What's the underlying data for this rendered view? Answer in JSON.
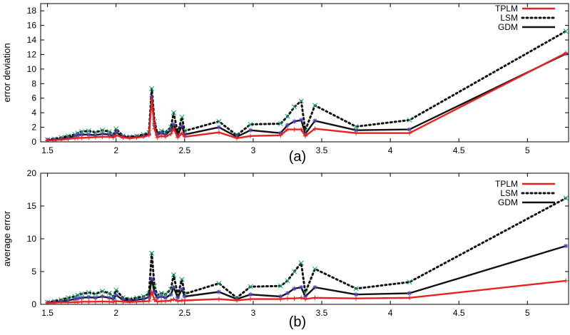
{
  "chart_data": [
    {
      "panel": "(a)",
      "type": "line",
      "caption": "(a)",
      "ylabel": "error deviation",
      "xlabel": "",
      "xlim": [
        1.45,
        5.3
      ],
      "ylim": [
        0,
        19
      ],
      "xticks": [
        1.5,
        2,
        2.5,
        3,
        3.5,
        4,
        4.5,
        5
      ],
      "xtick_labels": [
        "1.5",
        "2",
        "2.5",
        "3",
        "3.5",
        "4",
        "4.5",
        "5"
      ],
      "yticks": [
        0,
        2,
        4,
        6,
        8,
        10,
        12,
        14,
        16,
        18
      ],
      "ytick_labels": [
        "0",
        "2",
        "4",
        "6",
        "8",
        "10",
        "12",
        "14",
        "16",
        "18"
      ],
      "legend_position": "top-right",
      "grid": false,
      "series": [
        {
          "name": "TPLM",
          "color": "#e8221e",
          "style": "solid",
          "marker": "plus",
          "x": [
            1.5,
            1.55,
            1.6,
            1.65,
            1.7,
            1.72,
            1.75,
            1.8,
            1.85,
            1.9,
            1.95,
            1.98,
            2.0,
            2.05,
            2.1,
            2.15,
            2.2,
            2.24,
            2.26,
            2.28,
            2.3,
            2.33,
            2.36,
            2.4,
            2.42,
            2.45,
            2.48,
            2.5,
            2.75,
            2.88,
            2.98,
            3.2,
            3.25,
            3.3,
            3.35,
            3.38,
            3.45,
            3.75,
            4.14,
            5.28
          ],
          "y": [
            0.2,
            0.25,
            0.3,
            0.4,
            0.5,
            0.55,
            0.55,
            0.6,
            0.65,
            0.7,
            0.7,
            0.6,
            0.9,
            0.6,
            0.5,
            0.6,
            0.7,
            0.9,
            5.8,
            1.8,
            0.6,
            0.8,
            0.7,
            1.1,
            1.8,
            0.6,
            1.2,
            0.7,
            1.3,
            0.5,
            0.8,
            0.9,
            1.7,
            1.7,
            1.7,
            0.8,
            1.8,
            1.2,
            1.2,
            12.2
          ]
        },
        {
          "name": "LSM",
          "color": "#111111",
          "style": "dotted",
          "marker": "x-green",
          "x": [
            1.5,
            1.55,
            1.6,
            1.65,
            1.7,
            1.72,
            1.75,
            1.8,
            1.85,
            1.9,
            1.95,
            1.98,
            2.0,
            2.05,
            2.1,
            2.15,
            2.2,
            2.24,
            2.26,
            2.28,
            2.3,
            2.33,
            2.36,
            2.4,
            2.42,
            2.45,
            2.48,
            2.5,
            2.75,
            2.88,
            2.98,
            3.2,
            3.25,
            3.3,
            3.35,
            3.38,
            3.45,
            3.75,
            4.14,
            5.28
          ],
          "y": [
            0.3,
            0.4,
            0.6,
            0.8,
            1.0,
            1.2,
            1.4,
            1.5,
            1.3,
            1.6,
            1.4,
            1.0,
            1.8,
            0.8,
            0.7,
            0.8,
            1.0,
            1.3,
            7.3,
            2.8,
            1.2,
            1.5,
            1.3,
            2.0,
            4.0,
            1.2,
            3.4,
            1.5,
            2.8,
            0.9,
            2.4,
            2.5,
            3.5,
            4.8,
            5.6,
            1.6,
            5.0,
            2.1,
            3.0,
            15.2
          ]
        },
        {
          "name": "GDM",
          "color": "#111111",
          "style": "solid",
          "marker": "star-blue",
          "x": [
            1.5,
            1.55,
            1.6,
            1.65,
            1.7,
            1.72,
            1.75,
            1.8,
            1.85,
            1.9,
            1.95,
            1.98,
            2.0,
            2.05,
            2.1,
            2.15,
            2.2,
            2.24,
            2.26,
            2.28,
            2.3,
            2.33,
            2.36,
            2.4,
            2.42,
            2.45,
            2.48,
            2.5,
            2.75,
            2.88,
            2.98,
            3.2,
            3.25,
            3.3,
            3.35,
            3.38,
            3.45,
            3.75,
            4.14,
            5.28
          ],
          "y": [
            0.25,
            0.3,
            0.4,
            0.6,
            0.8,
            0.9,
            1.0,
            1.0,
            0.9,
            1.1,
            1.0,
            0.8,
            1.3,
            0.7,
            0.6,
            0.7,
            0.8,
            1.1,
            6.2,
            2.3,
            1.0,
            1.2,
            1.0,
            1.6,
            2.4,
            0.9,
            2.2,
            1.0,
            2.0,
            0.7,
            1.6,
            1.2,
            2.3,
            2.8,
            3.0,
            1.1,
            2.9,
            1.6,
            1.7,
            12.1
          ]
        }
      ]
    },
    {
      "panel": "(b)",
      "type": "line",
      "caption": "(b)",
      "ylabel": "average error",
      "xlabel": "",
      "xlim": [
        1.45,
        5.3
      ],
      "ylim": [
        0,
        20
      ],
      "xticks": [
        1.5,
        2,
        2.5,
        3,
        3.5,
        4,
        4.5,
        5
      ],
      "xtick_labels": [
        "1.5",
        "2",
        "2.5",
        "3",
        "3.5",
        "4",
        "4.5",
        "5"
      ],
      "yticks": [
        0,
        5,
        10,
        15,
        20
      ],
      "ytick_labels": [
        "0",
        "5",
        "10",
        "15",
        "20"
      ],
      "legend_position": "top-right",
      "grid": false,
      "series": [
        {
          "name": "TPLM",
          "color": "#e8221e",
          "style": "solid",
          "marker": "plus",
          "x": [
            1.5,
            1.55,
            1.6,
            1.65,
            1.7,
            1.72,
            1.75,
            1.8,
            1.85,
            1.9,
            1.95,
            1.98,
            2.0,
            2.05,
            2.1,
            2.15,
            2.2,
            2.24,
            2.26,
            2.28,
            2.3,
            2.33,
            2.36,
            2.4,
            2.42,
            2.45,
            2.48,
            2.5,
            2.75,
            2.88,
            2.98,
            3.2,
            3.25,
            3.3,
            3.35,
            3.38,
            3.45,
            3.75,
            4.14,
            5.28
          ],
          "y": [
            0.2,
            0.25,
            0.3,
            0.3,
            0.35,
            0.35,
            0.4,
            0.4,
            0.4,
            0.45,
            0.4,
            0.35,
            0.5,
            0.4,
            0.35,
            0.4,
            0.45,
            0.5,
            1.9,
            0.7,
            0.4,
            0.5,
            0.5,
            0.6,
            0.8,
            0.5,
            0.6,
            0.6,
            0.8,
            0.6,
            0.8,
            0.8,
            0.9,
            0.9,
            1.0,
            0.8,
            1.0,
            0.9,
            1.0,
            3.6
          ]
        },
        {
          "name": "LSM",
          "color": "#111111",
          "style": "dotted",
          "marker": "x-green",
          "x": [
            1.5,
            1.55,
            1.6,
            1.65,
            1.7,
            1.72,
            1.75,
            1.8,
            1.85,
            1.9,
            1.95,
            1.98,
            2.0,
            2.05,
            2.1,
            2.15,
            2.2,
            2.24,
            2.26,
            2.28,
            2.3,
            2.33,
            2.36,
            2.4,
            2.42,
            2.45,
            2.48,
            2.5,
            2.75,
            2.88,
            2.98,
            3.2,
            3.25,
            3.3,
            3.35,
            3.38,
            3.45,
            3.75,
            4.14,
            5.28
          ],
          "y": [
            0.3,
            0.5,
            0.7,
            1.0,
            1.2,
            1.4,
            1.6,
            1.8,
            1.6,
            2.0,
            1.7,
            1.2,
            2.2,
            1.0,
            0.8,
            1.0,
            1.2,
            1.6,
            7.8,
            2.8,
            1.4,
            1.7,
            1.5,
            2.3,
            4.5,
            1.4,
            3.8,
            1.6,
            3.2,
            1.0,
            2.7,
            2.8,
            3.6,
            5.0,
            6.3,
            1.8,
            5.4,
            2.4,
            3.4,
            16.2
          ]
        },
        {
          "name": "GDM",
          "color": "#111111",
          "style": "solid",
          "marker": "star-blue",
          "x": [
            1.5,
            1.55,
            1.6,
            1.65,
            1.7,
            1.72,
            1.75,
            1.8,
            1.85,
            1.9,
            1.95,
            1.98,
            2.0,
            2.05,
            2.1,
            2.15,
            2.2,
            2.24,
            2.26,
            2.28,
            2.3,
            2.33,
            2.36,
            2.4,
            2.42,
            2.45,
            2.48,
            2.5,
            2.75,
            2.88,
            2.98,
            3.2,
            3.25,
            3.3,
            3.35,
            3.38,
            3.45,
            3.75,
            4.14,
            5.28
          ],
          "y": [
            0.25,
            0.35,
            0.45,
            0.6,
            0.8,
            0.9,
            1.0,
            1.1,
            1.0,
            1.2,
            1.0,
            0.8,
            1.4,
            0.7,
            0.6,
            0.7,
            0.8,
            1.1,
            3.9,
            1.8,
            1.0,
            1.2,
            1.0,
            1.5,
            2.6,
            1.0,
            2.3,
            1.2,
            1.9,
            0.8,
            1.5,
            1.2,
            1.7,
            2.4,
            2.6,
            1.2,
            2.6,
            1.5,
            1.7,
            8.9
          ]
        }
      ]
    }
  ]
}
